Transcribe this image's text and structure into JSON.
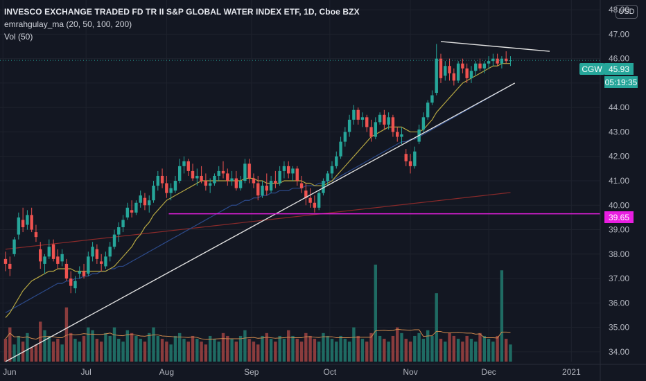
{
  "header": {
    "title": "INVESCO EXCHANGE TRADED FD TR II S&P GLOBAL WATER INDEX ETF, 1D, Cboe BZX",
    "indicator_ma": "emrahgulay_ma (20, 50, 100, 200)",
    "indicator_vol": "Vol (50)",
    "currency_button": "USD"
  },
  "price_tag": {
    "symbol": "CGW",
    "price": "45.93",
    "countdown": "05:19:35"
  },
  "level_tag": {
    "price": "39.65"
  },
  "colors": {
    "background": "#131722",
    "up": "#26a69a",
    "down": "#ef5350",
    "up_volume": "#1f6b63",
    "down_volume": "#8a3c3d",
    "ma20": "#b5a642",
    "ma50": "#2c4a8a",
    "ma200": "#8b2a2a",
    "vol_ma": "#d08a4e",
    "trendline": "#e0e0e0",
    "support_line": "#e91ee1",
    "grid": "#1e222d"
  },
  "chart_data": {
    "type": "candlestick",
    "title": "INVESCO EXCHANGE TRADED FD TR II S&P GLOBAL WATER INDEX ETF, 1D, Cboe BZX",
    "y_ticks": [
      "34.00",
      "35.00",
      "36.00",
      "37.00",
      "38.00",
      "39.00",
      "40.00",
      "41.00",
      "42.00",
      "43.00",
      "44.00",
      "45.00",
      "46.00",
      "47.00",
      "48.00"
    ],
    "x_ticks": [
      "Jun",
      "Jul",
      "Aug",
      "Sep",
      "Oct",
      "Nov",
      "Dec",
      "2021"
    ],
    "ylim": [
      33.6,
      48.4
    ],
    "candles": [
      [
        37.8,
        38.1,
        37.3,
        37.6
      ],
      [
        37.6,
        37.9,
        37.1,
        37.4
      ],
      [
        38.0,
        38.7,
        37.9,
        38.6
      ],
      [
        38.8,
        39.7,
        38.6,
        39.5
      ],
      [
        39.4,
        39.9,
        38.9,
        39.1
      ],
      [
        39.2,
        39.8,
        39.0,
        39.6
      ],
      [
        39.6,
        39.9,
        38.9,
        39.0
      ],
      [
        38.9,
        39.2,
        38.5,
        38.7
      ],
      [
        38.2,
        38.5,
        37.4,
        37.7
      ],
      [
        37.6,
        38.0,
        37.2,
        37.9
      ],
      [
        37.9,
        38.6,
        37.8,
        38.3
      ],
      [
        38.4,
        38.6,
        37.7,
        37.8
      ],
      [
        37.9,
        38.2,
        37.4,
        37.6
      ],
      [
        37.7,
        38.2,
        37.5,
        38.0
      ],
      [
        37.6,
        37.8,
        36.9,
        37.0
      ],
      [
        37.0,
        37.3,
        36.4,
        36.7
      ],
      [
        36.6,
        37.1,
        36.4,
        36.9
      ],
      [
        37.2,
        37.5,
        37.0,
        37.3
      ],
      [
        37.3,
        37.6,
        37.0,
        37.1
      ],
      [
        37.2,
        38.1,
        37.1,
        37.9
      ],
      [
        37.9,
        38.5,
        37.7,
        38.3
      ],
      [
        38.2,
        38.4,
        37.6,
        37.8
      ],
      [
        37.7,
        38.0,
        37.3,
        37.6
      ],
      [
        37.5,
        38.1,
        37.4,
        37.9
      ],
      [
        37.9,
        38.5,
        37.7,
        38.3
      ],
      [
        38.3,
        39.0,
        38.2,
        38.8
      ],
      [
        38.8,
        39.3,
        38.5,
        39.1
      ],
      [
        39.1,
        39.6,
        38.9,
        39.4
      ],
      [
        39.5,
        40.1,
        39.4,
        39.9
      ],
      [
        39.8,
        40.2,
        39.5,
        39.7
      ],
      [
        39.7,
        40.2,
        39.6,
        40.1
      ],
      [
        40.1,
        40.6,
        39.9,
        40.4
      ],
      [
        40.3,
        40.5,
        39.8,
        40.0
      ],
      [
        40.0,
        40.4,
        39.7,
        40.2
      ],
      [
        40.2,
        41.0,
        40.1,
        40.8
      ],
      [
        40.8,
        41.4,
        40.6,
        41.2
      ],
      [
        41.2,
        41.5,
        40.7,
        40.9
      ],
      [
        40.9,
        41.2,
        40.3,
        40.5
      ],
      [
        40.5,
        40.9,
        40.2,
        40.7
      ],
      [
        40.6,
        41.2,
        40.5,
        41.0
      ],
      [
        41.0,
        41.9,
        40.9,
        41.6
      ],
      [
        41.6,
        42.0,
        41.3,
        41.8
      ],
      [
        41.8,
        41.9,
        41.2,
        41.4
      ],
      [
        41.4,
        41.7,
        41.0,
        41.1
      ],
      [
        41.1,
        41.5,
        40.8,
        41.2
      ],
      [
        41.2,
        41.6,
        40.9,
        41.0
      ],
      [
        41.0,
        41.3,
        40.6,
        40.8
      ],
      [
        40.8,
        41.1,
        40.5,
        40.9
      ],
      [
        40.9,
        41.3,
        40.8,
        41.2
      ],
      [
        41.2,
        41.6,
        41.0,
        41.4
      ],
      [
        41.4,
        41.8,
        41.1,
        41.3
      ],
      [
        41.3,
        41.5,
        40.8,
        41.0
      ],
      [
        41.0,
        41.4,
        40.8,
        41.1
      ],
      [
        41.1,
        41.4,
        40.6,
        40.7
      ],
      [
        40.7,
        41.2,
        40.6,
        41.0
      ],
      [
        41.0,
        41.9,
        40.9,
        41.7
      ],
      [
        41.7,
        41.9,
        40.9,
        41.1
      ],
      [
        41.1,
        41.3,
        40.7,
        40.9
      ],
      [
        40.9,
        41.2,
        40.2,
        40.4
      ],
      [
        40.4,
        41.0,
        40.3,
        40.8
      ],
      [
        40.8,
        41.3,
        40.4,
        40.6
      ],
      [
        40.6,
        41.2,
        40.5,
        41.0
      ],
      [
        41.0,
        41.4,
        40.7,
        40.9
      ],
      [
        40.9,
        41.6,
        40.8,
        41.4
      ],
      [
        41.4,
        41.8,
        41.1,
        41.6
      ],
      [
        41.6,
        41.8,
        41.1,
        41.3
      ],
      [
        41.3,
        41.6,
        41.0,
        41.5
      ],
      [
        41.5,
        41.6,
        40.8,
        41.0
      ],
      [
        40.9,
        41.2,
        40.5,
        40.7
      ],
      [
        40.6,
        40.9,
        40.0,
        40.3
      ],
      [
        40.3,
        40.7,
        39.9,
        40.1
      ],
      [
        40.1,
        40.4,
        39.7,
        39.9
      ],
      [
        39.9,
        40.6,
        39.8,
        40.5
      ],
      [
        40.5,
        41.1,
        40.4,
        41.0
      ],
      [
        41.0,
        41.4,
        40.8,
        41.3
      ],
      [
        41.3,
        41.8,
        41.1,
        41.6
      ],
      [
        41.6,
        42.2,
        41.5,
        42.0
      ],
      [
        42.0,
        42.8,
        41.9,
        42.6
      ],
      [
        42.6,
        43.2,
        42.4,
        43.0
      ],
      [
        43.0,
        43.7,
        42.8,
        43.5
      ],
      [
        43.5,
        44.1,
        43.3,
        43.9
      ],
      [
        43.9,
        44.0,
        43.3,
        43.5
      ],
      [
        43.5,
        43.8,
        43.2,
        43.6
      ],
      [
        43.6,
        43.7,
        43.0,
        43.2
      ],
      [
        43.2,
        43.5,
        42.6,
        42.8
      ],
      [
        42.8,
        43.6,
        42.7,
        43.4
      ],
      [
        43.4,
        43.8,
        43.3,
        43.7
      ],
      [
        43.7,
        43.9,
        43.1,
        43.3
      ],
      [
        43.3,
        43.8,
        43.1,
        43.6
      ],
      [
        43.6,
        43.7,
        42.8,
        43.0
      ],
      [
        43.0,
        43.2,
        42.6,
        42.8
      ],
      [
        42.8,
        43.2,
        42.5,
        42.9
      ],
      [
        42.1,
        42.3,
        41.6,
        41.8
      ],
      [
        41.8,
        42.1,
        41.3,
        41.6
      ],
      [
        41.6,
        42.4,
        41.5,
        42.2
      ],
      [
        42.6,
        43.3,
        42.5,
        43.1
      ],
      [
        43.1,
        43.8,
        43.0,
        43.6
      ],
      [
        43.6,
        44.3,
        43.5,
        44.2
      ],
      [
        44.2,
        44.7,
        44.1,
        44.5
      ],
      [
        44.6,
        46.6,
        44.5,
        46.0
      ],
      [
        46.0,
        46.2,
        45.0,
        45.2
      ],
      [
        45.3,
        45.9,
        45.1,
        45.7
      ],
      [
        45.7,
        46.0,
        45.1,
        45.4
      ],
      [
        45.4,
        45.6,
        44.9,
        45.1
      ],
      [
        45.1,
        45.9,
        45.0,
        45.8
      ],
      [
        45.8,
        46.0,
        45.4,
        45.6
      ],
      [
        45.6,
        45.8,
        45.0,
        45.2
      ],
      [
        45.2,
        45.7,
        45.0,
        45.5
      ],
      [
        45.5,
        45.9,
        45.3,
        45.8
      ],
      [
        45.8,
        46.0,
        45.5,
        45.6
      ],
      [
        45.6,
        45.9,
        45.4,
        45.8
      ],
      [
        45.8,
        46.1,
        45.6,
        45.9
      ],
      [
        45.9,
        46.2,
        45.7,
        46.0
      ],
      [
        46.0,
        46.2,
        45.7,
        45.8
      ],
      [
        45.8,
        46.1,
        45.6,
        46.0
      ],
      [
        46.0,
        46.3,
        45.8,
        45.9
      ],
      [
        45.9,
        46.1,
        45.7,
        45.93
      ]
    ],
    "volume": [
      40,
      60,
      30,
      45,
      35,
      50,
      25,
      30,
      70,
      55,
      45,
      35,
      40,
      30,
      95,
      50,
      40,
      35,
      45,
      60,
      55,
      40,
      35,
      50,
      45,
      60,
      40,
      35,
      55,
      50,
      45,
      40,
      35,
      50,
      60,
      45,
      40,
      35,
      30,
      45,
      50,
      40,
      35,
      45,
      40,
      35,
      30,
      45,
      40,
      35,
      50,
      45,
      40,
      35,
      45,
      55,
      40,
      35,
      30,
      45,
      50,
      40,
      35,
      45,
      40,
      55,
      45,
      40,
      35,
      50,
      45,
      40,
      35,
      50,
      45,
      40,
      35,
      45,
      40,
      35,
      60,
      45,
      40,
      35,
      50,
      170,
      45,
      40,
      35,
      45,
      60,
      50,
      40,
      35,
      45,
      50,
      40,
      55,
      45,
      120,
      40,
      35,
      50,
      45,
      40,
      35,
      45,
      40,
      35,
      50,
      45,
      40,
      35,
      45,
      160,
      40,
      30
    ],
    "ma20": [
      35.4,
      35.6,
      35.9,
      36.2,
      36.5,
      36.7,
      36.9,
      37.0,
      37.1,
      37.2,
      37.3,
      37.3,
      37.4,
      37.4,
      37.4,
      37.4,
      37.3,
      37.3,
      37.3,
      37.3,
      37.3,
      37.3,
      37.3,
      37.3,
      37.4,
      37.5,
      37.7,
      37.9,
      38.1,
      38.3,
      38.6,
      38.8,
      39.1,
      39.3,
      39.6,
      39.8,
      40.0,
      40.2,
      40.3,
      40.4,
      40.5,
      40.6,
      40.7,
      40.8,
      40.9,
      41.0,
      41.0,
      41.0,
      41.0,
      41.0,
      41.0,
      41.0,
      41.0,
      41.0,
      41.0,
      41.1,
      41.1,
      41.1,
      41.0,
      41.0,
      40.9,
      40.9,
      40.9,
      40.9,
      41.0,
      41.0,
      41.0,
      41.0,
      41.0,
      40.9,
      40.9,
      40.8,
      40.8,
      40.8,
      40.9,
      41.0,
      41.2,
      41.4,
      41.6,
      41.8,
      42.0,
      42.2,
      42.4,
      42.6,
      42.8,
      42.9,
      43.0,
      43.1,
      43.2,
      43.2,
      43.2,
      43.2,
      43.1,
      43.0,
      43.0,
      43.0,
      43.1,
      43.3,
      43.5,
      43.8,
      44.0,
      44.2,
      44.4,
      44.6,
      44.8,
      45.0,
      45.1,
      45.2,
      45.3,
      45.4,
      45.5,
      45.6,
      45.7,
      45.7,
      45.8,
      45.8,
      45.8
    ],
    "ma50": [
      35.6,
      35.7,
      35.8,
      35.9,
      36.0,
      36.1,
      36.2,
      36.3,
      36.4,
      36.5,
      36.6,
      36.7,
      36.8,
      36.8,
      36.9,
      36.9,
      37.0,
      37.0,
      37.1,
      37.1,
      37.2,
      37.2,
      37.3,
      37.3,
      37.4,
      37.4,
      37.5,
      37.5,
      37.6,
      37.7,
      37.8,
      37.9,
      38.0,
      38.1,
      38.2,
      38.3,
      38.4,
      38.5,
      38.6,
      38.7,
      38.8,
      38.9,
      39.0,
      39.1,
      39.2,
      39.3,
      39.4,
      39.5,
      39.6,
      39.7,
      39.8,
      39.9,
      40.0,
      40.0,
      40.1,
      40.2,
      40.2,
      40.3,
      40.3,
      40.4,
      40.4,
      40.5,
      40.5,
      40.6,
      40.6,
      40.6,
      40.7,
      40.7,
      40.7,
      40.8,
      40.8,
      40.8,
      40.9,
      40.9,
      41.0,
      41.0,
      41.1,
      41.2,
      41.3,
      41.4,
      41.5,
      41.6,
      41.7,
      41.8,
      41.9,
      42.0,
      42.1,
      42.2,
      42.3,
      42.4,
      42.5,
      42.6,
      42.6,
      42.7,
      42.7,
      42.8,
      42.9,
      43.0,
      43.1,
      43.2,
      43.3,
      43.4,
      43.5,
      43.6,
      43.7,
      43.8,
      43.9,
      44.0,
      44.1,
      44.2,
      44.3,
      44.4,
      44.5,
      44.6,
      44.7,
      44.8,
      44.9
    ],
    "ma200": [
      38.2,
      38.22,
      38.24,
      38.26,
      38.28,
      38.3,
      38.32,
      38.34,
      38.36,
      38.38,
      38.4,
      38.42,
      38.44,
      38.46,
      38.48,
      38.5,
      38.52,
      38.54,
      38.56,
      38.58,
      38.6,
      38.62,
      38.64,
      38.66,
      38.68,
      38.7,
      38.72,
      38.74,
      38.76,
      38.78,
      38.8,
      38.82,
      38.84,
      38.86,
      38.88,
      38.9,
      38.92,
      38.94,
      38.96,
      38.98,
      39.0,
      39.02,
      39.04,
      39.06,
      39.08,
      39.1,
      39.12,
      39.14,
      39.16,
      39.18,
      39.2,
      39.22,
      39.24,
      39.26,
      39.28,
      39.3,
      39.32,
      39.34,
      39.36,
      39.38,
      39.4,
      39.42,
      39.44,
      39.46,
      39.48,
      39.5,
      39.52,
      39.54,
      39.56,
      39.58,
      39.6,
      39.62,
      39.64,
      39.66,
      39.68,
      39.7,
      39.72,
      39.74,
      39.76,
      39.78,
      39.8,
      39.82,
      39.84,
      39.86,
      39.88,
      39.9,
      39.92,
      39.94,
      39.96,
      39.98,
      40.0,
      40.02,
      40.04,
      40.06,
      40.08,
      40.1,
      40.12,
      40.14,
      40.16,
      40.18,
      40.2,
      40.22,
      40.24,
      40.26,
      40.28,
      40.3,
      40.32,
      40.34,
      40.36,
      40.38,
      40.4,
      40.42,
      40.44,
      40.46,
      40.48,
      40.5,
      40.52
    ],
    "trendlines": [
      {
        "from": [
          0,
          33.6
        ],
        "to": [
          117,
          45.0
        ],
        "color": "trendline"
      },
      {
        "from": [
          100,
          46.7
        ],
        "to": [
          125,
          46.3
        ],
        "color": "trendline"
      }
    ],
    "support_level": 39.65
  }
}
